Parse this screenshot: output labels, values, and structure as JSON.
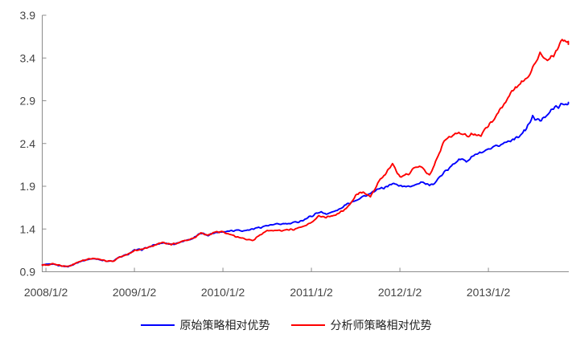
{
  "chart_data": {
    "type": "line",
    "title": "",
    "xlabel": "",
    "ylabel": "",
    "grid": false,
    "legend_position": "bottom-center",
    "colors": {
      "axis": "#8c8c8c",
      "tick_label": "#444444",
      "legend_text": "#222222"
    },
    "noise_amplitude": 0.009,
    "y_axis": {
      "min": 0.9,
      "max": 3.9,
      "ticks": [
        "0.9",
        "1.4",
        "1.9",
        "2.4",
        "2.9",
        "3.4",
        "3.9"
      ]
    },
    "x_axis": {
      "unit": "months since 2008/1/2",
      "min": -0.5,
      "max": 71,
      "ticks": [
        {
          "m": 0,
          "label": "2008/1/2"
        },
        {
          "m": 12,
          "label": "2009/1/2"
        },
        {
          "m": 24,
          "label": "2010/1/2"
        },
        {
          "m": 36,
          "label": "2011/1/2"
        },
        {
          "m": 48,
          "label": "2012/1/2"
        },
        {
          "m": 60,
          "label": "2013/1/2"
        }
      ]
    },
    "series": [
      {
        "name": "原始策略相对优势",
        "color": "#0000fe",
        "points": [
          [
            -0.5,
            0.98
          ],
          [
            0,
            0.98
          ],
          [
            1,
            0.99
          ],
          [
            2,
            0.97
          ],
          [
            3,
            0.96
          ],
          [
            4,
            1.0
          ],
          [
            5,
            1.03
          ],
          [
            6,
            1.05
          ],
          [
            7,
            1.05
          ],
          [
            8,
            1.03
          ],
          [
            9,
            1.02
          ],
          [
            10,
            1.07
          ],
          [
            11,
            1.1
          ],
          [
            12,
            1.15
          ],
          [
            13,
            1.16
          ],
          [
            14,
            1.19
          ],
          [
            15,
            1.22
          ],
          [
            16,
            1.24
          ],
          [
            17,
            1.22
          ],
          [
            18,
            1.24
          ],
          [
            19,
            1.27
          ],
          [
            20,
            1.29
          ],
          [
            21,
            1.35
          ],
          [
            22,
            1.33
          ],
          [
            23,
            1.36
          ],
          [
            24,
            1.37
          ],
          [
            25,
            1.38
          ],
          [
            26,
            1.39
          ],
          [
            27,
            1.38
          ],
          [
            28,
            1.4
          ],
          [
            29,
            1.42
          ],
          [
            30,
            1.44
          ],
          [
            31,
            1.45
          ],
          [
            32,
            1.46
          ],
          [
            33,
            1.46
          ],
          [
            34,
            1.48
          ],
          [
            35,
            1.51
          ],
          [
            36,
            1.55
          ],
          [
            37,
            1.6
          ],
          [
            38,
            1.58
          ],
          [
            39,
            1.6
          ],
          [
            40,
            1.64
          ],
          [
            41,
            1.7
          ],
          [
            42,
            1.74
          ],
          [
            43,
            1.78
          ],
          [
            44,
            1.81
          ],
          [
            45,
            1.86
          ],
          [
            46,
            1.89
          ],
          [
            47,
            1.93
          ],
          [
            48,
            1.91
          ],
          [
            49,
            1.89
          ],
          [
            50,
            1.92
          ],
          [
            51,
            1.95
          ],
          [
            52,
            1.9
          ],
          [
            53,
            1.97
          ],
          [
            54,
            2.06
          ],
          [
            55,
            2.13
          ],
          [
            56,
            2.23
          ],
          [
            57,
            2.19
          ],
          [
            58,
            2.26
          ],
          [
            59,
            2.29
          ],
          [
            60,
            2.32
          ],
          [
            61,
            2.36
          ],
          [
            62,
            2.4
          ],
          [
            63,
            2.44
          ],
          [
            64,
            2.48
          ],
          [
            65,
            2.55
          ],
          [
            66,
            2.71
          ],
          [
            67,
            2.66
          ],
          [
            68,
            2.75
          ],
          [
            69,
            2.82
          ],
          [
            70,
            2.85
          ],
          [
            71,
            2.88
          ]
        ]
      },
      {
        "name": "分析师策略相对优势",
        "color": "#fe0000",
        "points": [
          [
            -0.5,
            0.98
          ],
          [
            0,
            0.98
          ],
          [
            1,
            0.99
          ],
          [
            2,
            0.97
          ],
          [
            3,
            0.96
          ],
          [
            4,
            1.0
          ],
          [
            5,
            1.03
          ],
          [
            6,
            1.05
          ],
          [
            7,
            1.05
          ],
          [
            8,
            1.03
          ],
          [
            9,
            1.02
          ],
          [
            10,
            1.07
          ],
          [
            11,
            1.1
          ],
          [
            12,
            1.15
          ],
          [
            13,
            1.16
          ],
          [
            14,
            1.19
          ],
          [
            15,
            1.22
          ],
          [
            16,
            1.24
          ],
          [
            17,
            1.22
          ],
          [
            18,
            1.24
          ],
          [
            19,
            1.27
          ],
          [
            20,
            1.29
          ],
          [
            21,
            1.35
          ],
          [
            22,
            1.33
          ],
          [
            23,
            1.36
          ],
          [
            24,
            1.37
          ],
          [
            25,
            1.33
          ],
          [
            26,
            1.3
          ],
          [
            27,
            1.29
          ],
          [
            28,
            1.27
          ],
          [
            29,
            1.33
          ],
          [
            30,
            1.38
          ],
          [
            31,
            1.39
          ],
          [
            32,
            1.38
          ],
          [
            33,
            1.39
          ],
          [
            34,
            1.4
          ],
          [
            35,
            1.43
          ],
          [
            36,
            1.48
          ],
          [
            37,
            1.55
          ],
          [
            38,
            1.54
          ],
          [
            39,
            1.56
          ],
          [
            40,
            1.6
          ],
          [
            41,
            1.66
          ],
          [
            42,
            1.8
          ],
          [
            43,
            1.84
          ],
          [
            44,
            1.78
          ],
          [
            45,
            1.93
          ],
          [
            46,
            2.04
          ],
          [
            47,
            2.15
          ],
          [
            48,
            2.02
          ],
          [
            49,
            2.04
          ],
          [
            50,
            2.11
          ],
          [
            51,
            2.13
          ],
          [
            52,
            2.03
          ],
          [
            53,
            2.22
          ],
          [
            54,
            2.42
          ],
          [
            55,
            2.49
          ],
          [
            56,
            2.52
          ],
          [
            57,
            2.49
          ],
          [
            58,
            2.51
          ],
          [
            59,
            2.49
          ],
          [
            60,
            2.62
          ],
          [
            61,
            2.72
          ],
          [
            62,
            2.85
          ],
          [
            63,
            3.0
          ],
          [
            64,
            3.07
          ],
          [
            65,
            3.14
          ],
          [
            66,
            3.28
          ],
          [
            67,
            3.45
          ],
          [
            68,
            3.36
          ],
          [
            69,
            3.45
          ],
          [
            70,
            3.62
          ],
          [
            71,
            3.56
          ]
        ]
      }
    ]
  }
}
